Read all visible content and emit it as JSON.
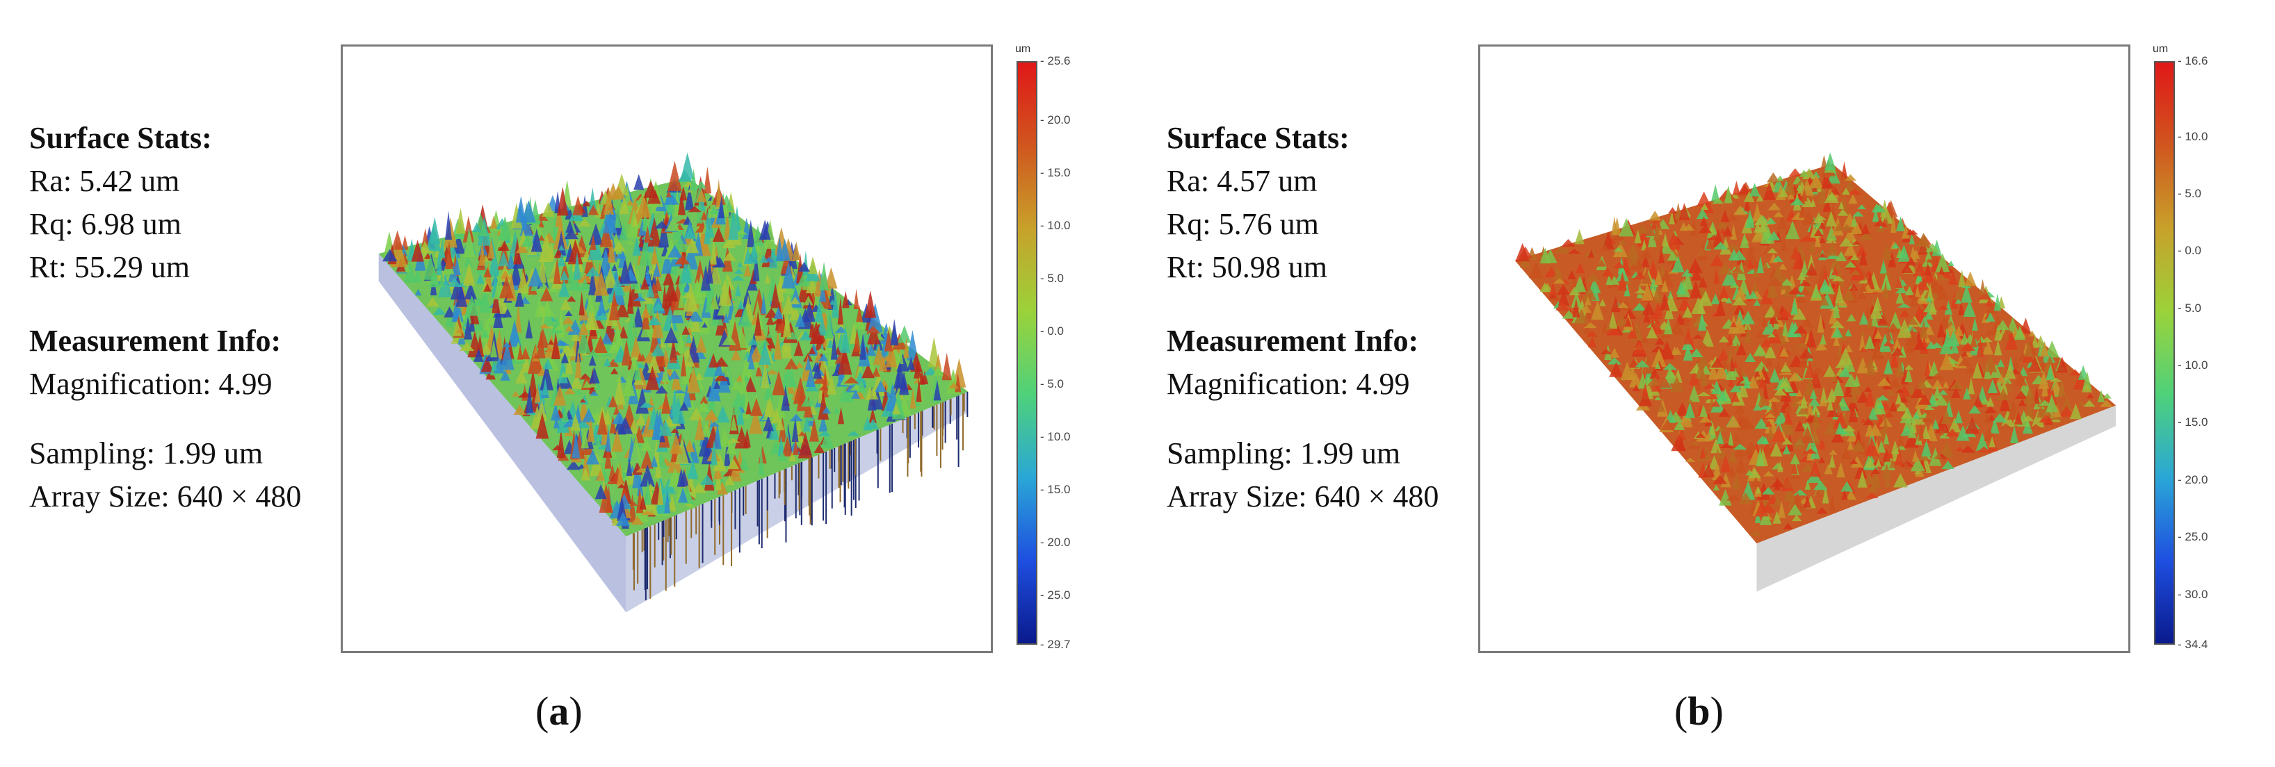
{
  "panels": [
    {
      "caption_open": "(",
      "caption_letter": "a",
      "caption_close": ")",
      "surface_stats_heading": "Surface Stats:",
      "ra": "Ra: 5.42 um",
      "rq": "Rq: 6.98 um",
      "rt": "Rt: 55.29 um",
      "measurement_heading": "Measurement Info:",
      "magnification": "Magnification: 4.99",
      "sampling": "Sampling: 1.99 um",
      "array_size": "Array Size: 640 × 480",
      "colorbar": {
        "unit": "um",
        "max": "25.6",
        "min": "29.7",
        "ticks": [
          "20.0",
          "15.0",
          "10.0",
          "5.0",
          "0.0",
          "- 5.0",
          "- 10.0",
          "- 15.0",
          "- 20.0",
          "- 25.0"
        ],
        "range": [
          -29.7,
          25.6
        ],
        "colors": [
          "#0a1a8c",
          "#1e4fe0",
          "#2aa7d6",
          "#4fd17a",
          "#9bd23a",
          "#c8a12a",
          "#d0561e",
          "#e01818"
        ]
      },
      "surface_palette": "mixed"
    },
    {
      "caption_open": "(",
      "caption_letter": "b",
      "caption_close": ")",
      "surface_stats_heading": "Surface Stats:",
      "ra": "Ra: 4.57 um",
      "rq": "Rq: 5.76 um",
      "rt": "Rt: 50.98 um",
      "measurement_heading": "Measurement Info:",
      "magnification": "Magnification: 4.99",
      "sampling": "Sampling: 1.99 um",
      "array_size": "Array Size: 640 × 480",
      "colorbar": {
        "unit": "um",
        "max": "16.6",
        "min": "34.4",
        "ticks": [
          "10.0",
          "5.0",
          "0.0",
          "- 5.0",
          "- 10.0",
          "- 15.0",
          "- 20.0",
          "- 25.0",
          "- 30.0"
        ],
        "range": [
          -34.4,
          16.6
        ],
        "colors": [
          "#0a1a8c",
          "#1e4fe0",
          "#2aa7d6",
          "#4fd17a",
          "#9bd23a",
          "#c8a12a",
          "#d0561e",
          "#e01818"
        ]
      },
      "surface_palette": "warm"
    }
  ]
}
